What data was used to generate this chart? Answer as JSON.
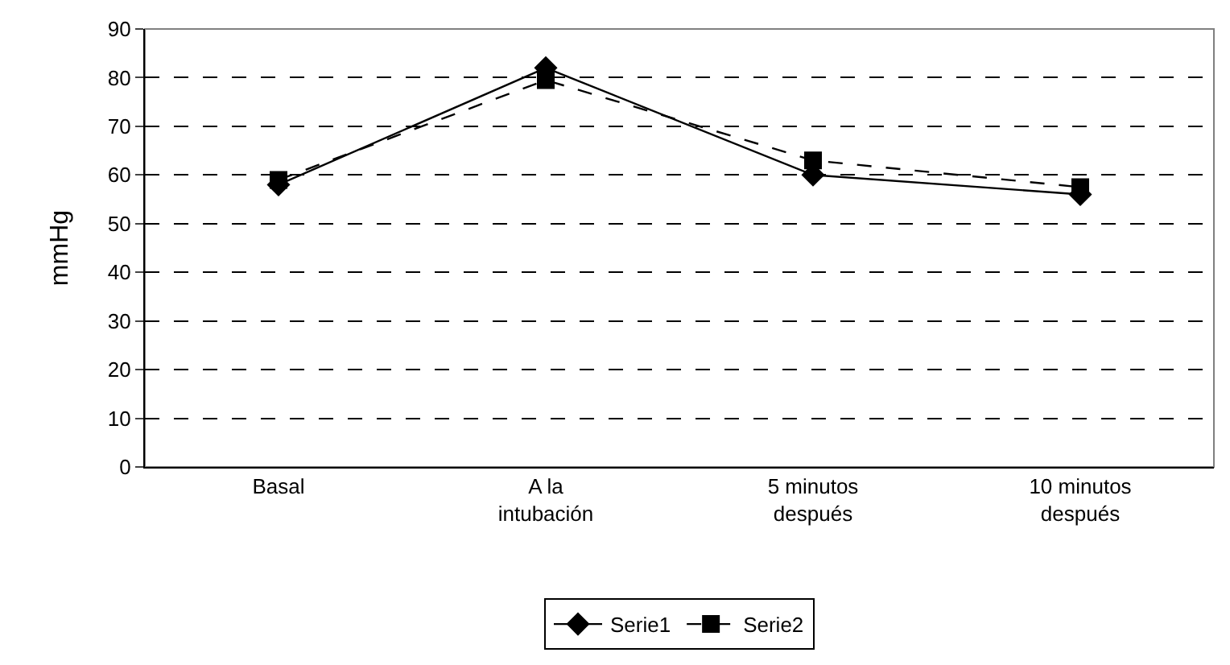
{
  "chart_data": {
    "type": "line",
    "ylabel": "mmHg",
    "categories": [
      "Basal",
      "A la\nintubación",
      "5 minutos\ndespués",
      "10 minutos\ndespués"
    ],
    "series": [
      {
        "name": "Serie1",
        "color": "#000000",
        "values": [
          58,
          82,
          60,
          56
        ],
        "marker": "diamond",
        "line_style": "solid"
      },
      {
        "name": "Serie2",
        "color": "#000000",
        "values": [
          59,
          79.5,
          63,
          57.5
        ],
        "marker": "square",
        "line_style": "dashed"
      }
    ],
    "ylim": [
      0,
      90
    ],
    "yticks": [
      0,
      10,
      20,
      30,
      40,
      50,
      60,
      70,
      80,
      90
    ],
    "grid": "y",
    "legend": "bottom"
  }
}
